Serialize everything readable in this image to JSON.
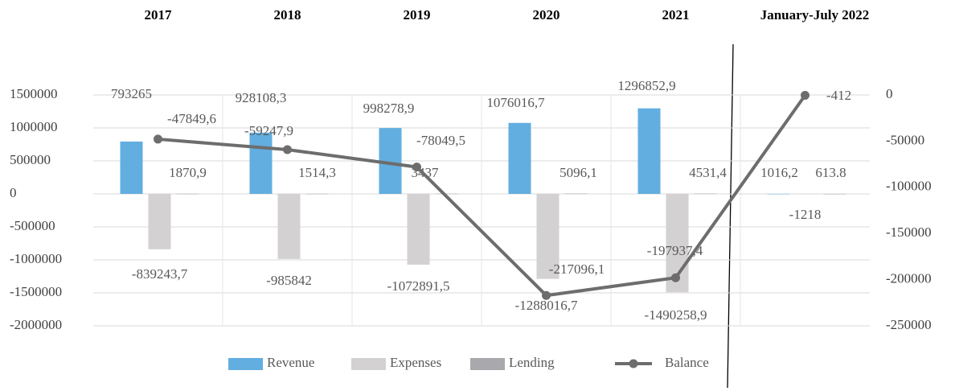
{
  "chart_data": {
    "type": "bar",
    "categories": [
      "2017",
      "2018",
      "2019",
      "2020",
      "2021",
      "January-July 2022"
    ],
    "series": [
      {
        "name": "Revenue",
        "color": "#62aee0",
        "values": [
          793265,
          928108.3,
          998278.9,
          1076016.7,
          1296852.9,
          1016.2
        ],
        "value_labels": [
          "793265",
          "928108,3",
          "998278,9",
          "1076016,7",
          "1296852,9",
          "1016,2"
        ]
      },
      {
        "name": "Expenses",
        "color": "#d3d1d1",
        "values": [
          -839243.7,
          -985842,
          -1072891.5,
          -1288016.7,
          -1490258.9,
          -1218
        ],
        "value_labels": [
          "-839243,7",
          "-985842",
          "-1072891,5",
          "-1288016,7",
          "-1490258,9",
          "-1218"
        ]
      },
      {
        "name": "Lending",
        "color": "#a8a8ad",
        "values": [
          1870.9,
          1514.3,
          3437,
          5096.1,
          4531.4,
          613.8
        ],
        "value_labels": [
          "1870,9",
          "1514,3",
          "3437",
          "5096,1",
          "4531,4",
          "613.8"
        ]
      },
      {
        "name": "Balance",
        "type": "line",
        "axis": "y2",
        "color": "#6d6d6d",
        "values": [
          -47849.6,
          -59247.9,
          -78049.5,
          -217096.1,
          -197937.4,
          -412
        ],
        "value_labels": [
          "-47849,6",
          "-59247,9",
          "-78049,5",
          "-217096,1",
          "-197937,4",
          "-412"
        ]
      }
    ],
    "ylim": [
      -2000000,
      1500000
    ],
    "yticks": [
      -2000000,
      -1500000,
      -1000000,
      -500000,
      0,
      500000,
      1000000,
      1500000
    ],
    "y2lim": [
      -250000,
      0
    ],
    "y2ticks": [
      -250000,
      -200000,
      -150000,
      -100000,
      -50000,
      0
    ],
    "grid": true,
    "legend": "bottom"
  }
}
